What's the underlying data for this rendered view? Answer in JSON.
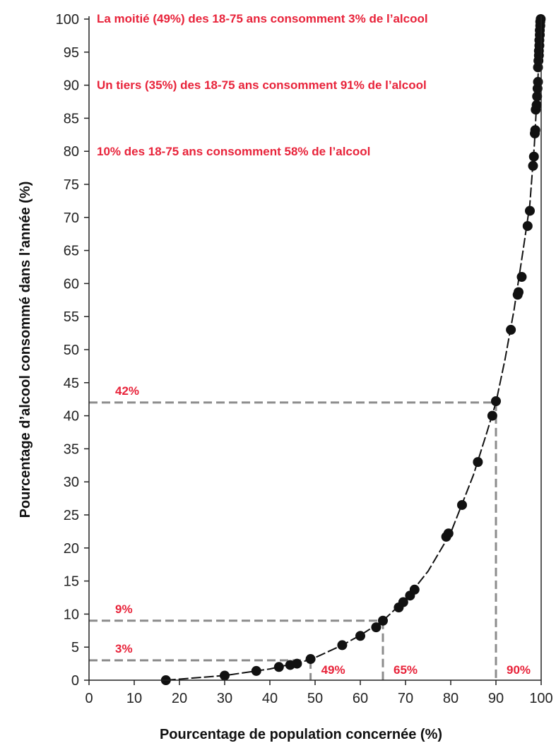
{
  "colors": {
    "annotation": "#e8233a",
    "reference_line": "#8c8c8c",
    "curve": "#111111",
    "points": "#111111",
    "axis": "#222222"
  },
  "chart_data": {
    "type": "scatter",
    "title": "",
    "xlabel": "Pourcentage de population concernée (%)",
    "ylabel": "Pourcentage d’alcool consommé dans l’année (%)",
    "xlim": [
      0,
      100
    ],
    "ylim": [
      0,
      100
    ],
    "xticks": [
      "0",
      "10",
      "20",
      "30",
      "40",
      "50",
      "60",
      "70",
      "80",
      "90",
      "100"
    ],
    "yticks": [
      "0",
      "5",
      "10",
      "15",
      "20",
      "25",
      "30",
      "35",
      "40",
      "45",
      "50",
      "55",
      "60",
      "65",
      "70",
      "75",
      "80",
      "85",
      "90",
      "95",
      "100"
    ],
    "grid": false,
    "points": [
      [
        17,
        0
      ],
      [
        30,
        0.7
      ],
      [
        37,
        1.4
      ],
      [
        42,
        2
      ],
      [
        44.5,
        2.3
      ],
      [
        46,
        2.5
      ],
      [
        49,
        3.2
      ],
      [
        56,
        5.3
      ],
      [
        60,
        6.7
      ],
      [
        63.5,
        8
      ],
      [
        65,
        9
      ],
      [
        68.5,
        11
      ],
      [
        69.5,
        11.8
      ],
      [
        71,
        12.8
      ],
      [
        72,
        13.7
      ],
      [
        79,
        21.7
      ],
      [
        79.5,
        22.2
      ],
      [
        82.5,
        26.5
      ],
      [
        86,
        33
      ],
      [
        89.2,
        40
      ],
      [
        90,
        42.2
      ],
      [
        93.3,
        53
      ],
      [
        94.8,
        58.3
      ],
      [
        95,
        58.7
      ],
      [
        95.7,
        61
      ],
      [
        97,
        68.7
      ],
      [
        97.5,
        71
      ],
      [
        98.2,
        77.8
      ],
      [
        98.4,
        79.2
      ],
      [
        98.6,
        82.7
      ],
      [
        98.7,
        83.2
      ],
      [
        98.8,
        86.3
      ],
      [
        99,
        87
      ],
      [
        99.1,
        88.3
      ],
      [
        99.2,
        89.5
      ],
      [
        99.3,
        90.5
      ],
      [
        99.3,
        92.7
      ],
      [
        99.4,
        93.7
      ],
      [
        99.5,
        94.5
      ],
      [
        99.5,
        95.2
      ],
      [
        99.6,
        96
      ],
      [
        99.6,
        96.8
      ],
      [
        99.7,
        97.6
      ],
      [
        99.7,
        98.3
      ],
      [
        99.8,
        99
      ],
      [
        99.8,
        99.6
      ],
      [
        99.9,
        100
      ]
    ],
    "curve": [
      [
        17,
        0
      ],
      [
        30,
        0.7
      ],
      [
        40,
        1.7
      ],
      [
        49,
        3.1
      ],
      [
        56,
        5.3
      ],
      [
        60,
        6.8
      ],
      [
        65,
        9
      ],
      [
        70,
        12.2
      ],
      [
        75,
        16.5
      ],
      [
        80,
        22.3
      ],
      [
        85,
        31
      ],
      [
        88,
        37.5
      ],
      [
        90,
        42
      ],
      [
        92,
        48.5
      ],
      [
        94,
        56
      ],
      [
        96,
        65
      ],
      [
        97.5,
        72
      ],
      [
        98.5,
        81
      ],
      [
        99.2,
        90
      ],
      [
        99.6,
        95
      ],
      [
        100,
        100
      ]
    ],
    "reference_lines": [
      {
        "x": 49,
        "y": 3,
        "x_label": "49%",
        "y_label": "3%"
      },
      {
        "x": 65,
        "y": 9,
        "x_label": "65%",
        "y_label": "9%"
      },
      {
        "x": 90,
        "y": 42,
        "x_label": "90%",
        "y_label": "42%"
      }
    ],
    "annotations": [
      "La moitié (49%) des 18-75 ans consomment 3% de l’alcool",
      "Un tiers (35%) des 18-75 ans consomment 91% de l’alcool",
      "10% des 18-75 ans consomment 58% de l’alcool"
    ]
  }
}
